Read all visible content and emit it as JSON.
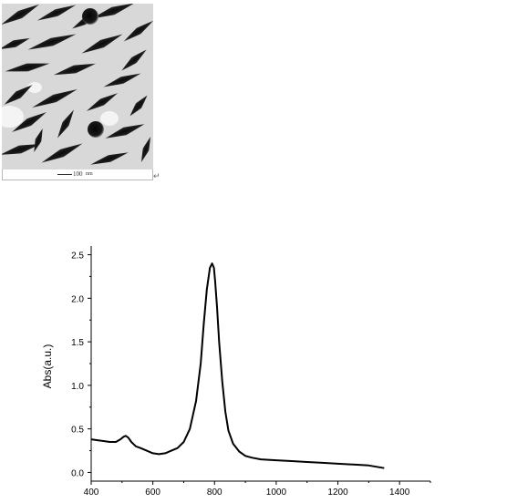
{
  "figure": {
    "scale_label": "100",
    "scale_unit": "nm",
    "return_mark": "↵"
  },
  "colors": {
    "tem_background": "#dcdcdc",
    "tem_dark": "#141414",
    "line": "#000000"
  },
  "chart_data": {
    "type": "line",
    "title": "",
    "xlabel": "",
    "ylabel": "Abs(a.u.)",
    "xlim": [
      400,
      1500
    ],
    "ylim": [
      -0.1,
      2.6
    ],
    "xticks": [
      400,
      600,
      800,
      1000,
      1200,
      1400
    ],
    "yticks": [
      0.0,
      0.5,
      1.0,
      1.5,
      2.0,
      2.5
    ],
    "xtick_labels": [
      "400",
      "600",
      "800",
      "1000",
      "1200",
      "1400"
    ],
    "ytick_labels": [
      "0.0",
      "0.5",
      "1.0",
      "1.5",
      "2.0",
      "2.5"
    ],
    "grid": false,
    "series": [
      {
        "x": [
          400,
          420,
          440,
          460,
          480,
          495,
          505,
          512,
          520,
          530,
          545,
          560,
          580,
          600,
          620,
          640,
          660,
          680,
          700,
          720,
          740,
          755,
          765,
          775,
          785,
          792,
          798,
          802,
          808,
          815,
          825,
          835,
          845,
          860,
          880,
          900,
          920,
          950,
          1000,
          1050,
          1100,
          1150,
          1200,
          1250,
          1300,
          1350
        ],
        "y": [
          0.38,
          0.37,
          0.36,
          0.35,
          0.35,
          0.38,
          0.41,
          0.42,
          0.4,
          0.35,
          0.3,
          0.28,
          0.25,
          0.22,
          0.21,
          0.22,
          0.25,
          0.28,
          0.35,
          0.5,
          0.82,
          1.25,
          1.7,
          2.1,
          2.35,
          2.4,
          2.35,
          2.2,
          1.9,
          1.5,
          1.05,
          0.7,
          0.48,
          0.33,
          0.24,
          0.19,
          0.17,
          0.15,
          0.14,
          0.13,
          0.12,
          0.11,
          0.1,
          0.09,
          0.08,
          0.05
        ]
      }
    ]
  }
}
